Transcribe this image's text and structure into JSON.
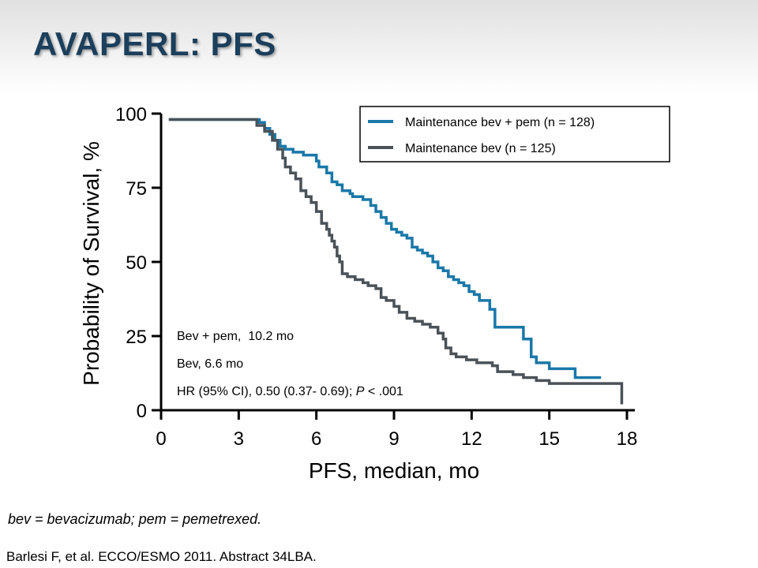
{
  "slide": {
    "title": "AVAPERL: PFS",
    "footnote": "bev = bevacizumab; pem = pemetrexed.",
    "citation": "Barlesi F, et al. ECCO/ESMO 2011. Abstract 34LBA."
  },
  "colors": {
    "bev_pem": "#1a78a8",
    "bev": "#4a5258",
    "title": "#1b3f5c"
  },
  "chart_data": {
    "type": "line",
    "step": true,
    "title": "",
    "xlabel": "PFS, median, mo",
    "ylabel": "Probability of Survival, %",
    "xlim": [
      0,
      18
    ],
    "ylim": [
      0,
      100
    ],
    "xticks": [
      0,
      3,
      6,
      9,
      12,
      15,
      18
    ],
    "yticks": [
      0,
      25,
      50,
      75,
      100
    ],
    "grid": false,
    "legend_position": "top-right",
    "series": [
      {
        "name": "Maintenance bev + pem (n = 128)",
        "color": "#1a78a8",
        "x": [
          0.3,
          3.5,
          3.8,
          4.0,
          4.2,
          4.4,
          4.6,
          4.8,
          5.1,
          5.5,
          6.0,
          6.1,
          6.4,
          6.6,
          6.8,
          7.0,
          7.3,
          7.4,
          7.8,
          8.1,
          8.3,
          8.5,
          8.7,
          8.9,
          9.1,
          9.3,
          9.5,
          9.7,
          9.9,
          10.1,
          10.3,
          10.5,
          10.7,
          10.9,
          11.1,
          11.3,
          11.5,
          11.7,
          11.9,
          12.1,
          12.3,
          12.7,
          12.9,
          13.5,
          14.0,
          14.3,
          14.5,
          15.0,
          16.0,
          17.0
        ],
        "y": [
          98,
          98,
          97,
          95,
          93,
          91,
          89,
          88,
          87,
          86,
          84,
          82,
          80,
          77,
          76,
          74,
          73,
          72,
          71,
          69,
          67,
          65,
          63,
          61,
          60,
          59,
          58,
          55,
          54,
          53,
          52,
          50,
          48,
          47,
          45,
          44,
          43,
          42,
          40,
          39,
          37,
          34,
          28,
          28,
          24,
          18,
          16,
          14,
          11,
          11
        ]
      },
      {
        "name": "Maintenance bev (n = 125)",
        "color": "#4a5258",
        "x": [
          0.3,
          3.4,
          3.7,
          4.0,
          4.3,
          4.5,
          4.7,
          4.8,
          5.0,
          5.2,
          5.4,
          5.6,
          5.8,
          6.0,
          6.2,
          6.4,
          6.5,
          6.6,
          6.7,
          6.8,
          6.9,
          7.0,
          7.2,
          7.5,
          7.8,
          8.0,
          8.3,
          8.5,
          8.7,
          9.0,
          9.2,
          9.5,
          9.8,
          10.1,
          10.4,
          10.7,
          10.9,
          11.0,
          11.2,
          11.4,
          11.8,
          12.2,
          12.8,
          13.0,
          13.6,
          14.0,
          14.5,
          15.0,
          17.5,
          17.8
        ],
        "y": [
          98,
          98,
          96,
          94,
          91,
          88,
          85,
          82,
          80,
          78,
          74,
          72,
          70,
          67,
          63,
          61,
          59,
          57,
          55,
          52,
          50,
          46,
          45,
          44,
          43,
          42,
          41,
          38,
          37,
          35,
          33,
          31,
          30,
          29,
          28,
          26,
          24,
          21,
          19,
          18,
          17,
          16,
          15,
          13,
          12,
          11,
          10,
          9,
          9,
          2
        ]
      }
    ],
    "annotations": [
      "Bev + pem,  10.2 mo",
      "Bev, 6.6 mo",
      "HR (95% CI), 0.50 (0.37- 0.69); ",
      "P",
      " < .001"
    ]
  }
}
